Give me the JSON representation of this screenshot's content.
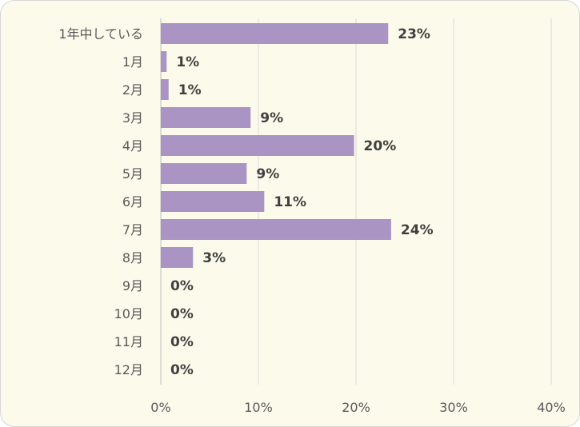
{
  "chart_data": {
    "type": "bar",
    "orientation": "horizontal",
    "categories": [
      "1年中している",
      "1月",
      "2月",
      "3月",
      "4月",
      "5月",
      "6月",
      "7月",
      "8月",
      "9月",
      "10月",
      "11月",
      "12月"
    ],
    "values": [
      23,
      1,
      1,
      9,
      20,
      9,
      11,
      24,
      3,
      0,
      0,
      0,
      0
    ],
    "bar_values_precise": [
      23.3,
      0.6,
      0.8,
      9.2,
      19.8,
      8.8,
      10.6,
      23.6,
      3.3,
      0,
      0,
      0,
      0
    ],
    "data_labels": [
      "23%",
      "1%",
      "1%",
      "9%",
      "20%",
      "9%",
      "11%",
      "24%",
      "3%",
      "0%",
      "0%",
      "0%",
      "0%"
    ],
    "x_ticks": [
      0,
      10,
      20,
      30,
      40
    ],
    "x_tick_labels": [
      "0%",
      "10%",
      "20%",
      "30%",
      "40%"
    ],
    "xlim": [
      0,
      40
    ],
    "title": "",
    "xlabel": "",
    "ylabel": "",
    "grid": "vertical",
    "legend": "none",
    "colors": {
      "bar": "#aa94c4",
      "background": "#fcfaeb",
      "gridline": "#d9d9d9",
      "axis_text": "#595959",
      "data_label_text": "#404040"
    }
  }
}
